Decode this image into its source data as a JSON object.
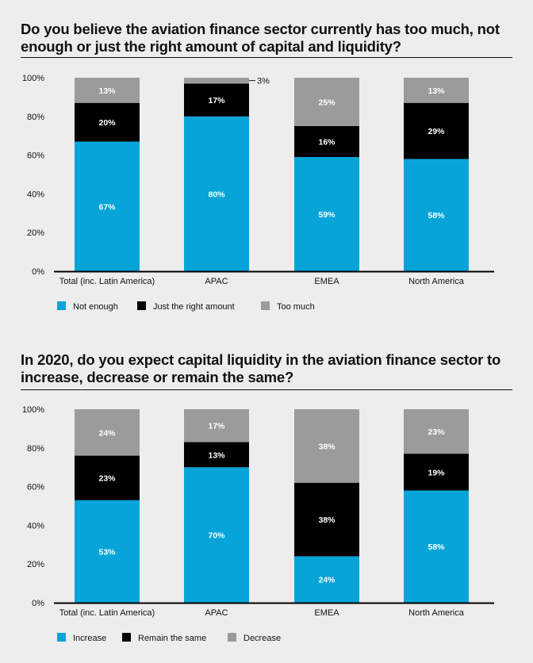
{
  "colors": {
    "blue": "#06a4d8",
    "black": "#000000",
    "gray": "#9b9b99",
    "axis": "#111111"
  },
  "chart_data": [
    {
      "type": "bar",
      "stacked": true,
      "title": "Do you believe the aviation finance sector currently has too much, not enough or just the right amount of capital and liquidity?",
      "xlabel": "",
      "ylabel": "",
      "ylim": [
        0,
        100
      ],
      "yticks": [
        "0%",
        "20%",
        "40%",
        "60%",
        "80%",
        "100%"
      ],
      "categories": [
        "Total (inc. Latin America)",
        "APAC",
        "EMEA",
        "North America"
      ],
      "series": [
        {
          "name": "Not enough",
          "color": "#06a4d8",
          "values": [
            67,
            80,
            59,
            58
          ],
          "labels": [
            "67%",
            "80%",
            "59%",
            "58%"
          ]
        },
        {
          "name": "Just the right amount",
          "color": "#000000",
          "values": [
            20,
            17,
            16,
            29
          ],
          "labels": [
            "20%",
            "17%",
            "16%",
            "29%"
          ]
        },
        {
          "name": "Too much",
          "color": "#9b9b99",
          "values": [
            13,
            3,
            25,
            13
          ],
          "labels": [
            "13%",
            "3%",
            "25%",
            "13%"
          ]
        }
      ],
      "outside_labels": [
        {
          "category": 1,
          "series": 2,
          "text": "3%"
        }
      ],
      "legend": "bottom-left",
      "grid": false
    },
    {
      "type": "bar",
      "stacked": true,
      "title": "In 2020, do you expect capital liquidity in the aviation finance sector to increase, decrease or remain the same?",
      "xlabel": "",
      "ylabel": "",
      "ylim": [
        0,
        100
      ],
      "yticks": [
        "0%",
        "20%",
        "40%",
        "60%",
        "80%",
        "100%"
      ],
      "categories": [
        "Total (inc. Latin America)",
        "APAC",
        "EMEA",
        "North America"
      ],
      "series": [
        {
          "name": "Increase",
          "color": "#06a4d8",
          "values": [
            53,
            70,
            24,
            58
          ],
          "labels": [
            "53%",
            "70%",
            "24%",
            "58%"
          ]
        },
        {
          "name": "Remain the same",
          "color": "#000000",
          "values": [
            23,
            13,
            38,
            19
          ],
          "labels": [
            "23%",
            "13%",
            "38%",
            "19%"
          ]
        },
        {
          "name": "Decrease",
          "color": "#9b9b99",
          "values": [
            24,
            17,
            38,
            23
          ],
          "labels": [
            "24%",
            "17%",
            "38%",
            "23%"
          ]
        }
      ],
      "outside_labels": [],
      "legend": "bottom-left",
      "grid": false
    }
  ]
}
